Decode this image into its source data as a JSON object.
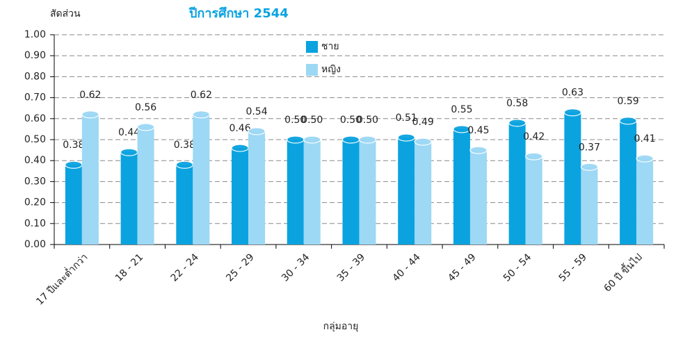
{
  "chart_data": {
    "type": "bar",
    "title": "ปีการศึกษา 2544",
    "y_label": "สัดส่วน",
    "x_label": "กลุ่มอายุ",
    "categories": [
      "17 ปีและต่ำกว่า",
      "18 - 21",
      "22 - 24",
      "25 - 29",
      "30 - 34",
      "35 - 39",
      "40 - 44",
      "45 - 49",
      "50 - 54",
      "55 - 59",
      "60 ปี ขึ้นไป"
    ],
    "series": [
      {
        "name": "ชาย",
        "color": "#0aa3e0",
        "values": [
          0.38,
          0.44,
          0.38,
          0.46,
          0.5,
          0.5,
          0.51,
          0.55,
          0.58,
          0.63,
          0.59
        ],
        "value_labels": [
          "0.38",
          "0.44",
          "0.38",
          "0.46",
          "0.50",
          "0.50",
          "0.51",
          "0.55",
          "0.58",
          "0.63",
          "0.59"
        ]
      },
      {
        "name": "หญิง",
        "color": "#9dd8f5",
        "values": [
          0.62,
          0.56,
          0.62,
          0.54,
          0.5,
          0.5,
          0.49,
          0.45,
          0.42,
          0.37,
          0.41
        ],
        "value_labels": [
          "0.62",
          "0.56",
          "0.62",
          "0.54",
          "0.50",
          "0.50",
          "0.49",
          "0.45",
          "0.42",
          "0.37",
          "0.41"
        ]
      }
    ],
    "ylim": [
      0,
      1
    ],
    "yticks": [
      {
        "value": 0,
        "label": "0.00"
      },
      {
        "value": 0.1,
        "label": "0.10"
      },
      {
        "value": 0.2,
        "label": "0.20"
      },
      {
        "value": 0.3,
        "label": "0.30"
      },
      {
        "value": 0.4,
        "label": "0.40"
      },
      {
        "value": 0.5,
        "label": "0.50"
      },
      {
        "value": 0.6,
        "label": "0.60"
      },
      {
        "value": 0.7,
        "label": "0.70"
      },
      {
        "value": 0.8,
        "label": "0.80"
      },
      {
        "value": 0.9,
        "label": "0.90"
      },
      {
        "value": 1,
        "label": "1.00"
      }
    ],
    "grid": true
  }
}
